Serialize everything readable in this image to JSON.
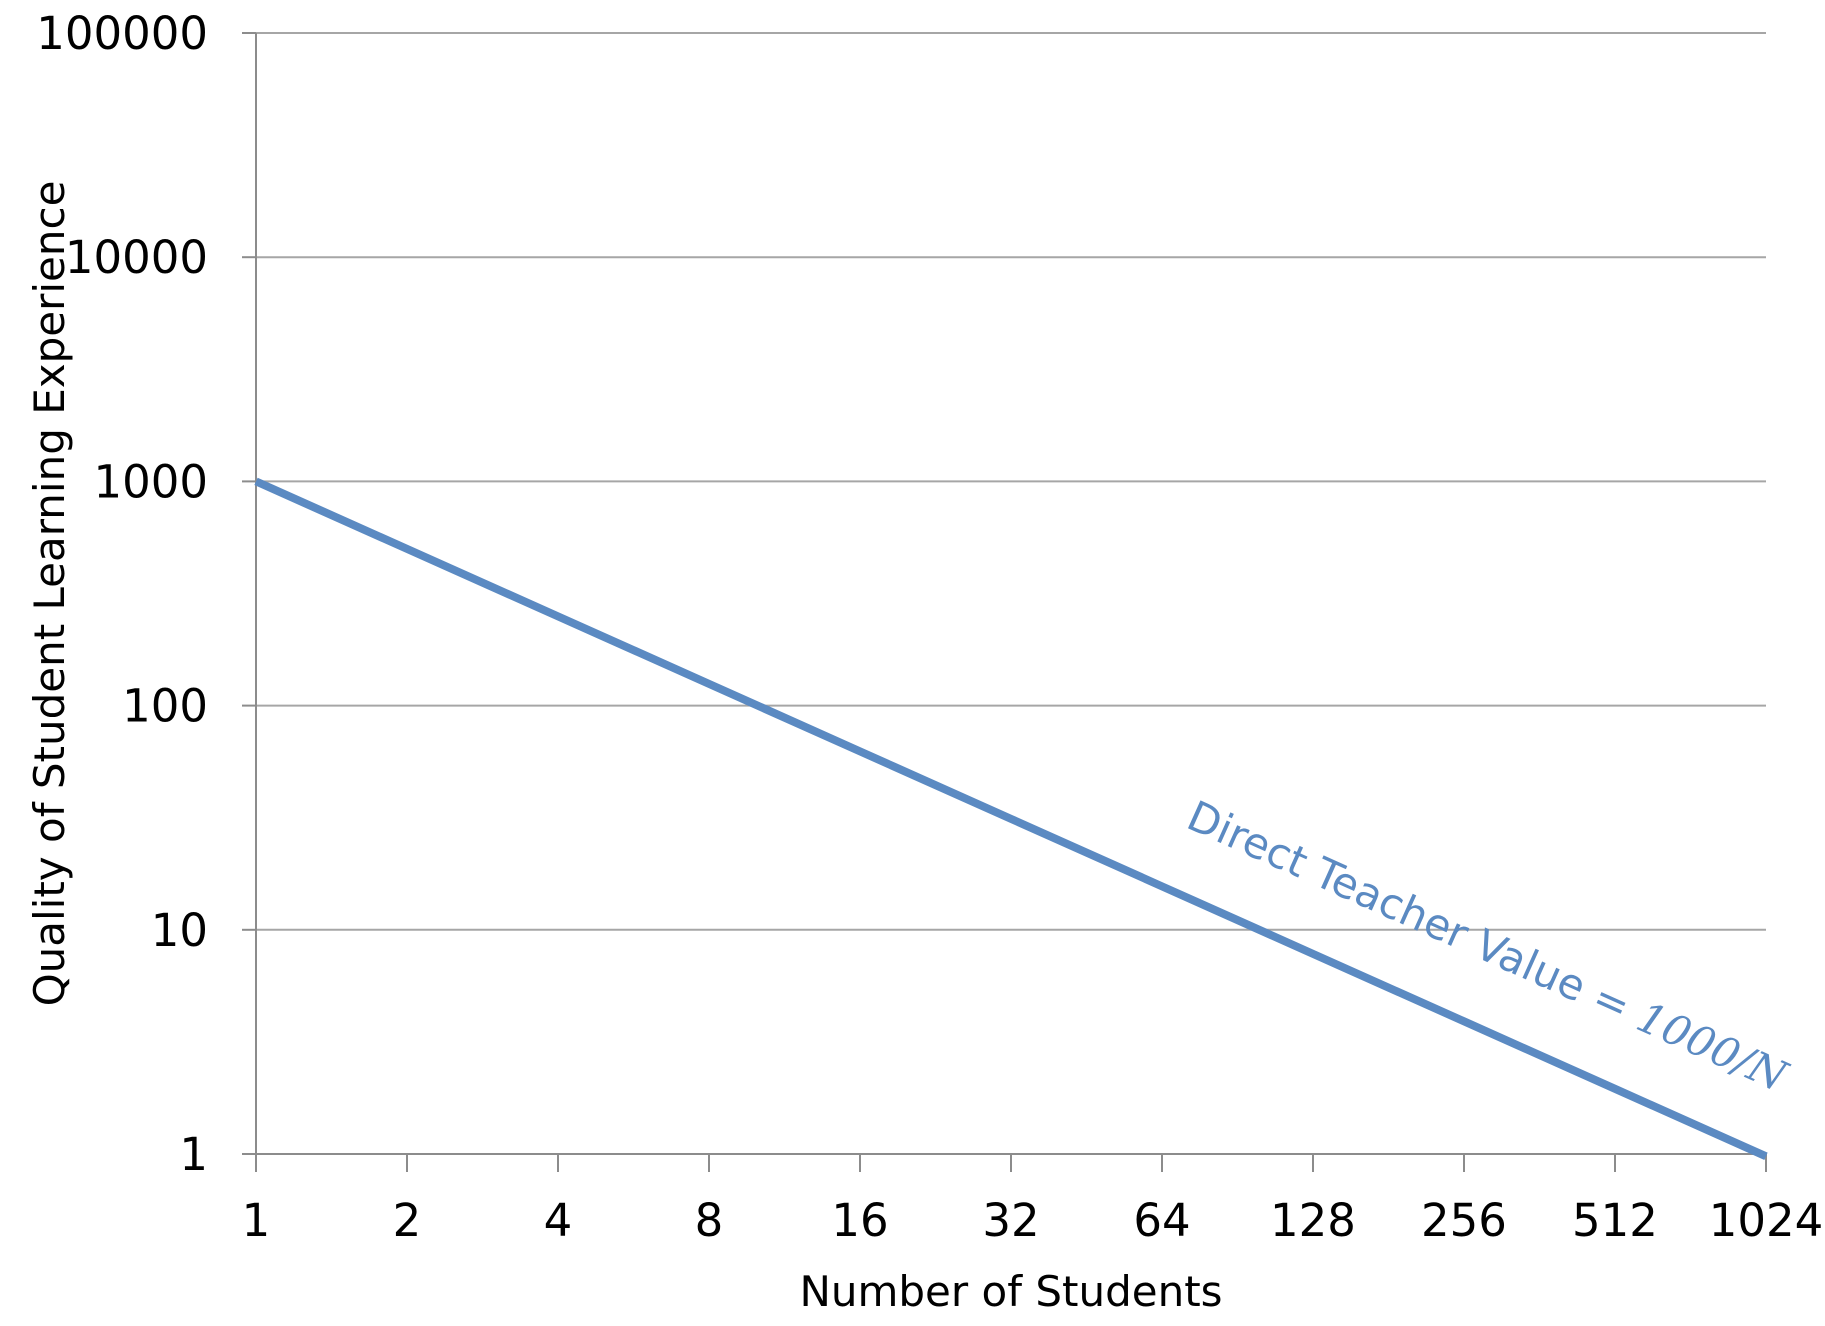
{
  "chart_data": {
    "type": "line",
    "title": "",
    "xlabel": "Number of Students",
    "ylabel": "Quality of Student Learning Experience",
    "x_scale": "log2",
    "y_scale": "log10",
    "xlim": [
      1,
      1024
    ],
    "ylim": [
      1,
      100000
    ],
    "x_ticks": [
      1,
      2,
      4,
      8,
      16,
      32,
      64,
      128,
      256,
      512,
      1024
    ],
    "x_tick_labels": [
      "1",
      "2",
      "4",
      "8",
      "16",
      "32",
      "64",
      "128",
      "256",
      "512",
      "1024"
    ],
    "y_ticks": [
      1,
      10,
      100,
      1000,
      10000,
      100000
    ],
    "y_tick_labels": [
      "1",
      "10",
      "100",
      "1000",
      "10000",
      "100000"
    ],
    "grid": "horizontal",
    "series": [
      {
        "color": "#5B8AC2",
        "x": [
          1,
          2,
          4,
          8,
          16,
          32,
          64,
          128,
          256,
          512,
          1024
        ],
        "y": [
          1000,
          500,
          250,
          125,
          62.5,
          31.25,
          15.625,
          7.8125,
          3.90625,
          1.953125,
          0.9765625
        ]
      }
    ],
    "annotations": [
      {
        "text": "Direct Teacher Value = ",
        "math": "1000/N",
        "color": "#5B8AC2",
        "anchor_x": 1024,
        "anchor_y": 1
      }
    ]
  },
  "colors": {
    "grid": "#A6A6A6",
    "axis": "#8C8C8C",
    "series": "#5B8AC2"
  }
}
